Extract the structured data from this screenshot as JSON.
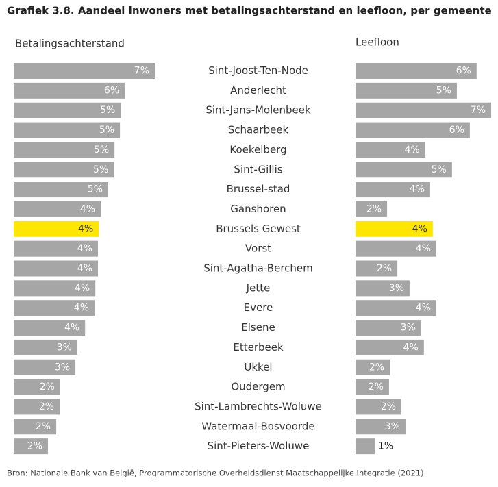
{
  "chart_data": {
    "type": "bar",
    "orientation": "horizontal",
    "title": "Grafiek 3.8. Aandeel inwoners met betalingsachterstand en leefloon, per gemeente",
    "source": "Bron: Nationale Bank van België, Programmatorische Overheidsdienst Maatschappelijke Integratie (2021)",
    "categories": [
      "Sint-Joost-Ten-Node",
      "Anderlecht",
      "Sint-Jans-Molenbeek",
      "Schaarbeek",
      "Koekelberg",
      "Sint-Gillis",
      "Brussel-stad",
      "Ganshoren",
      "Brussels Gewest",
      "Vorst",
      "Sint-Agatha-Berchem",
      "Jette",
      "Evere",
      "Elsene",
      "Etterbeek",
      "Ukkel",
      "Oudergem",
      "Sint-Lambrechts-Woluwe",
      "Watermaal-Bosvoorde",
      "Sint-Pieters-Woluwe"
    ],
    "series": [
      {
        "name": "Betalingsachterstand",
        "values": [
          7.0,
          5.51,
          5.31,
          5.27,
          5.0,
          4.97,
          4.69,
          4.32,
          4.22,
          4.18,
          4.18,
          4.05,
          4.01,
          3.54,
          3.16,
          3.06,
          2.31,
          2.28,
          2.11,
          1.7
        ],
        "value_labels": [
          "7%",
          "6%",
          "5%",
          "5%",
          "5%",
          "5%",
          "5%",
          "4%",
          "4%",
          "4%",
          "4%",
          "4%",
          "4%",
          "4%",
          "3%",
          "3%",
          "2%",
          "2%",
          "2%",
          "2%"
        ],
        "colors": [
          "#a6a6a6",
          "#a6a6a6",
          "#a6a6a6",
          "#a6a6a6",
          "#a6a6a6",
          "#a6a6a6",
          "#a6a6a6",
          "#a6a6a6",
          "#ffe600",
          "#a6a6a6",
          "#a6a6a6",
          "#a6a6a6",
          "#a6a6a6",
          "#a6a6a6",
          "#a6a6a6",
          "#a6a6a6",
          "#a6a6a6",
          "#a6a6a6",
          "#a6a6a6",
          "#a6a6a6"
        ]
      },
      {
        "name": "Leefloon",
        "values": [
          6.25,
          5.23,
          7.0,
          5.9,
          3.6,
          4.98,
          3.85,
          1.63,
          3.99,
          4.17,
          2.16,
          2.79,
          4.17,
          3.39,
          3.53,
          1.77,
          1.73,
          2.37,
          2.58,
          0.99
        ],
        "value_labels": [
          "6%",
          "5%",
          "7%",
          "6%",
          "4%",
          "5%",
          "4%",
          "2%",
          "4%",
          "4%",
          "2%",
          "3%",
          "4%",
          "3%",
          "4%",
          "2%",
          "2%",
          "2%",
          "3%",
          "1%"
        ],
        "colors": [
          "#a6a6a6",
          "#a6a6a6",
          "#a6a6a6",
          "#a6a6a6",
          "#a6a6a6",
          "#a6a6a6",
          "#a6a6a6",
          "#a6a6a6",
          "#ffe600",
          "#a6a6a6",
          "#a6a6a6",
          "#a6a6a6",
          "#a6a6a6",
          "#a6a6a6",
          "#a6a6a6",
          "#a6a6a6",
          "#a6a6a6",
          "#a6a6a6",
          "#a6a6a6",
          "#a6a6a6"
        ]
      }
    ]
  }
}
